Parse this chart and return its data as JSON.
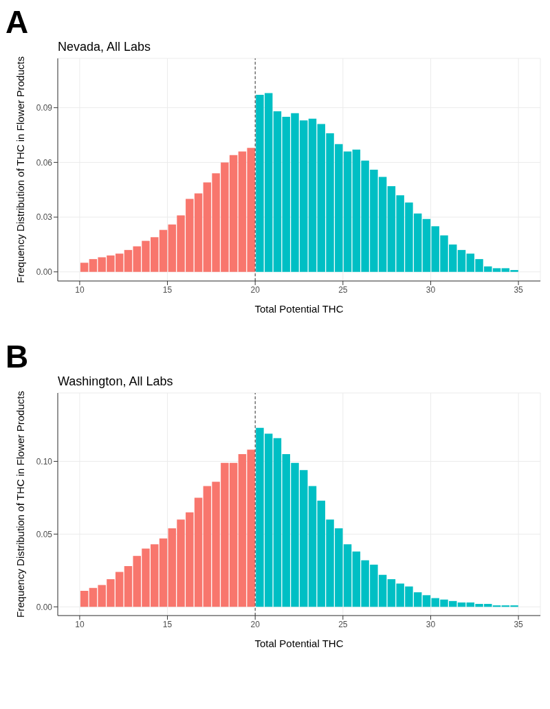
{
  "chart_data": [
    {
      "type": "histogram",
      "title": "Nevada, All Labs",
      "xlabel": "Total Potential THC",
      "ylabel": "Frequency Distribution of THC in Flower Products",
      "annotations": [
        "A"
      ],
      "bins": [
        10,
        10.5,
        11,
        11.5,
        12,
        12.5,
        13,
        13.5,
        14,
        14.5,
        15,
        15.5,
        16,
        16.5,
        17,
        17.5,
        18,
        18.5,
        19,
        19.5,
        20,
        20.5,
        21,
        21.5,
        22,
        22.5,
        23,
        23.5,
        24,
        24.5,
        25,
        25.5,
        26,
        26.5,
        27,
        27.5,
        28,
        28.5,
        29,
        29.5,
        30,
        30.5,
        31,
        31.5,
        32,
        32.5,
        33,
        33.5,
        34,
        34.5,
        35
      ],
      "values": [
        0.005,
        0.007,
        0.008,
        0.009,
        0.01,
        0.012,
        0.014,
        0.017,
        0.019,
        0.023,
        0.026,
        0.031,
        0.04,
        0.043,
        0.049,
        0.054,
        0.06,
        0.064,
        0.066,
        0.068,
        0.097,
        0.098,
        0.088,
        0.085,
        0.087,
        0.083,
        0.084,
        0.081,
        0.076,
        0.07,
        0.066,
        0.067,
        0.061,
        0.056,
        0.052,
        0.047,
        0.042,
        0.038,
        0.032,
        0.029,
        0.025,
        0.02,
        0.015,
        0.012,
        0.01,
        0.007,
        0.003,
        0.002,
        0.002,
        0.001
      ],
      "colors": [
        "#f8766d",
        "#f8766d",
        "#f8766d",
        "#f8766d",
        "#f8766d",
        "#f8766d",
        "#f8766d",
        "#f8766d",
        "#f8766d",
        "#f8766d",
        "#f8766d",
        "#f8766d",
        "#f8766d",
        "#f8766d",
        "#f8766d",
        "#f8766d",
        "#f8766d",
        "#f8766d",
        "#f8766d",
        "#f8766d",
        "#00bfc4",
        "#00bfc4",
        "#00bfc4",
        "#00bfc4",
        "#00bfc4",
        "#00bfc4",
        "#00bfc4",
        "#00bfc4",
        "#00bfc4",
        "#00bfc4",
        "#00bfc4",
        "#00bfc4",
        "#00bfc4",
        "#00bfc4",
        "#00bfc4",
        "#00bfc4",
        "#00bfc4",
        "#00bfc4",
        "#00bfc4",
        "#00bfc4",
        "#00bfc4",
        "#00bfc4",
        "#00bfc4",
        "#00bfc4",
        "#00bfc4",
        "#00bfc4",
        "#00bfc4",
        "#00bfc4",
        "#00bfc4",
        "#00bfc4"
      ],
      "xlim": [
        8.75,
        36.25
      ],
      "xticks": [
        10,
        15,
        20,
        25,
        30,
        35
      ],
      "ylim": [
        -0.005,
        0.117
      ],
      "yticks": [
        {
          "value": 0,
          "label": "0.00"
        },
        {
          "value": 0.03,
          "label": "0.03"
        },
        {
          "value": 0.06,
          "label": "0.06"
        },
        {
          "value": 0.09,
          "label": "0.09"
        }
      ],
      "ref_lines": [
        {
          "axis": "x",
          "value": 20,
          "color": "#333333",
          "line_style": "dashed"
        }
      ],
      "grid": true
    },
    {
      "type": "histogram",
      "title": "Washington, All Labs",
      "xlabel": "Total Potential THC",
      "ylabel": "Frequency Distribution of THC in Flower Products",
      "annotations": [
        "B"
      ],
      "bins": [
        10,
        10.5,
        11,
        11.5,
        12,
        12.5,
        13,
        13.5,
        14,
        14.5,
        15,
        15.5,
        16,
        16.5,
        17,
        17.5,
        18,
        18.5,
        19,
        19.5,
        20,
        20.5,
        21,
        21.5,
        22,
        22.5,
        23,
        23.5,
        24,
        24.5,
        25,
        25.5,
        26,
        26.5,
        27,
        27.5,
        28,
        28.5,
        29,
        29.5,
        30,
        30.5,
        31,
        31.5,
        32,
        32.5,
        33,
        33.5,
        34,
        34.5,
        35
      ],
      "values": [
        0.011,
        0.013,
        0.015,
        0.019,
        0.024,
        0.028,
        0.035,
        0.04,
        0.043,
        0.047,
        0.054,
        0.06,
        0.065,
        0.075,
        0.083,
        0.086,
        0.099,
        0.099,
        0.105,
        0.108,
        0.123,
        0.119,
        0.116,
        0.105,
        0.099,
        0.094,
        0.083,
        0.073,
        0.06,
        0.054,
        0.043,
        0.038,
        0.032,
        0.029,
        0.022,
        0.019,
        0.016,
        0.014,
        0.01,
        0.008,
        0.006,
        0.005,
        0.004,
        0.003,
        0.003,
        0.002,
        0.002,
        0.001,
        0.001,
        0.001
      ],
      "colors": [
        "#f8766d",
        "#f8766d",
        "#f8766d",
        "#f8766d",
        "#f8766d",
        "#f8766d",
        "#f8766d",
        "#f8766d",
        "#f8766d",
        "#f8766d",
        "#f8766d",
        "#f8766d",
        "#f8766d",
        "#f8766d",
        "#f8766d",
        "#f8766d",
        "#f8766d",
        "#f8766d",
        "#f8766d",
        "#f8766d",
        "#00bfc4",
        "#00bfc4",
        "#00bfc4",
        "#00bfc4",
        "#00bfc4",
        "#00bfc4",
        "#00bfc4",
        "#00bfc4",
        "#00bfc4",
        "#00bfc4",
        "#00bfc4",
        "#00bfc4",
        "#00bfc4",
        "#00bfc4",
        "#00bfc4",
        "#00bfc4",
        "#00bfc4",
        "#00bfc4",
        "#00bfc4",
        "#00bfc4",
        "#00bfc4",
        "#00bfc4",
        "#00bfc4",
        "#00bfc4",
        "#00bfc4",
        "#00bfc4",
        "#00bfc4",
        "#00bfc4",
        "#00bfc4",
        "#00bfc4"
      ],
      "xlim": [
        8.75,
        36.25
      ],
      "xticks": [
        10,
        15,
        20,
        25,
        30,
        35
      ],
      "ylim": [
        -0.006,
        0.147
      ],
      "yticks": [
        {
          "value": 0,
          "label": "0.00"
        },
        {
          "value": 0.05,
          "label": "0.05"
        },
        {
          "value": 0.1,
          "label": "0.10"
        }
      ],
      "ref_lines": [
        {
          "axis": "x",
          "value": 20,
          "color": "#333333",
          "line_style": "dashed"
        }
      ],
      "grid": true
    }
  ]
}
